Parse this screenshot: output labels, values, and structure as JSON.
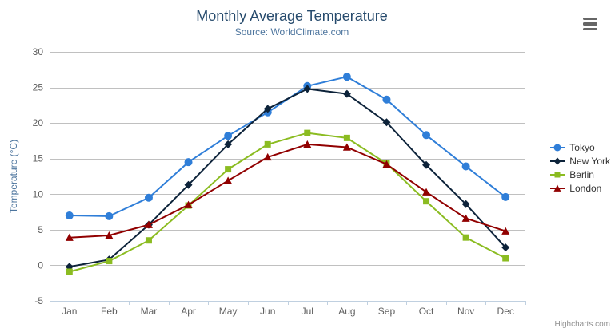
{
  "chart": {
    "title": "Monthly Average Temperature",
    "subtitle": "Source: WorldClimate.com",
    "credits": "Highcharts.com"
  },
  "icons": {
    "export_menu": "hamburger-menu-icon"
  },
  "colors": {
    "title": "#274b6d",
    "subtitle": "#4d759e",
    "axis_title": "#4d759e",
    "axis_labels": "#606060",
    "legend_text": "#333333",
    "grid_line": "#c0c0c0",
    "axis_line": "#c0d0e0",
    "credits": "#909090"
  },
  "chart_data": {
    "type": "line",
    "title": "Monthly Average Temperature",
    "subtitle": "Source: WorldClimate.com",
    "xlabel": "",
    "ylabel": "Temperature (°C)",
    "categories": [
      "Jan",
      "Feb",
      "Mar",
      "Apr",
      "May",
      "Jun",
      "Jul",
      "Aug",
      "Sep",
      "Oct",
      "Nov",
      "Dec"
    ],
    "ylim": [
      -5,
      30
    ],
    "y_ticks": [
      -5,
      0,
      5,
      10,
      15,
      20,
      25,
      30
    ],
    "grid": true,
    "legend_position": "right",
    "series": [
      {
        "name": "Tokyo",
        "color": "#2f7ed8",
        "marker": "circle",
        "values": [
          7.0,
          6.9,
          9.5,
          14.5,
          18.2,
          21.5,
          25.2,
          26.5,
          23.3,
          18.3,
          13.9,
          9.6
        ]
      },
      {
        "name": "New York",
        "color": "#0d233a",
        "marker": "diamond",
        "values": [
          -0.2,
          0.8,
          5.7,
          11.3,
          17.0,
          22.0,
          24.8,
          24.1,
          20.1,
          14.1,
          8.6,
          2.5
        ]
      },
      {
        "name": "Berlin",
        "color": "#8bbc21",
        "marker": "square",
        "values": [
          -0.9,
          0.6,
          3.5,
          8.4,
          13.5,
          17.0,
          18.6,
          17.9,
          14.3,
          9.0,
          3.9,
          1.0
        ]
      },
      {
        "name": "London",
        "color": "#910000",
        "marker": "triangle",
        "values": [
          3.9,
          4.2,
          5.7,
          8.5,
          11.9,
          15.2,
          17.0,
          16.6,
          14.2,
          10.3,
          6.6,
          4.8
        ]
      }
    ]
  }
}
